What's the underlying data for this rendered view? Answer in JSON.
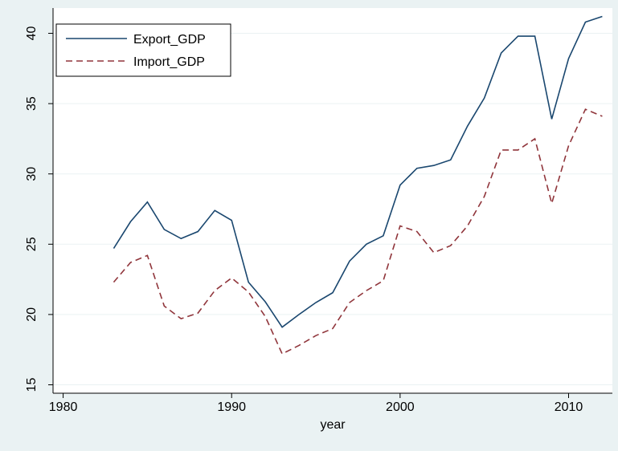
{
  "chart_data": {
    "type": "line",
    "x": [
      1983,
      1984,
      1985,
      1986,
      1987,
      1988,
      1989,
      1990,
      1991,
      1992,
      1993,
      1994,
      1995,
      1996,
      1997,
      1998,
      1999,
      2000,
      2001,
      2002,
      2003,
      2004,
      2005,
      2006,
      2007,
      2008,
      2009,
      2010,
      2011,
      2012
    ],
    "series": [
      {
        "name": "Export_GDP",
        "color": "#1a476f",
        "dash": "solid",
        "values": [
          24.7,
          26.6,
          28.0,
          26.05,
          25.4,
          25.9,
          27.4,
          26.7,
          22.3,
          20.9,
          19.1,
          20.0,
          20.85,
          21.55,
          23.8,
          25.0,
          25.6,
          29.2,
          30.4,
          30.6,
          31.0,
          33.4,
          35.4,
          38.6,
          39.8,
          39.8,
          33.9,
          38.2,
          40.8,
          41.2
        ]
      },
      {
        "name": "Import_GDP",
        "color": "#90353b",
        "dash": "dashed",
        "values": [
          22.3,
          23.7,
          24.2,
          20.6,
          19.7,
          20.1,
          21.7,
          22.6,
          21.6,
          19.85,
          17.2,
          17.8,
          18.5,
          19.0,
          20.85,
          21.7,
          22.4,
          26.3,
          25.9,
          24.4,
          24.9,
          26.3,
          28.4,
          31.7,
          31.7,
          32.5,
          27.9,
          32.0,
          34.6,
          34.1
        ]
      }
    ],
    "xlabel": "year",
    "xlim": [
      1979.4,
      2012.6
    ],
    "xticks": [
      1980,
      1990,
      2000,
      2010
    ],
    "ylim": [
      14.4,
      41.8
    ],
    "yticks": [
      15,
      20,
      25,
      30,
      35,
      40
    ],
    "grid": true,
    "legend": "top-left"
  }
}
